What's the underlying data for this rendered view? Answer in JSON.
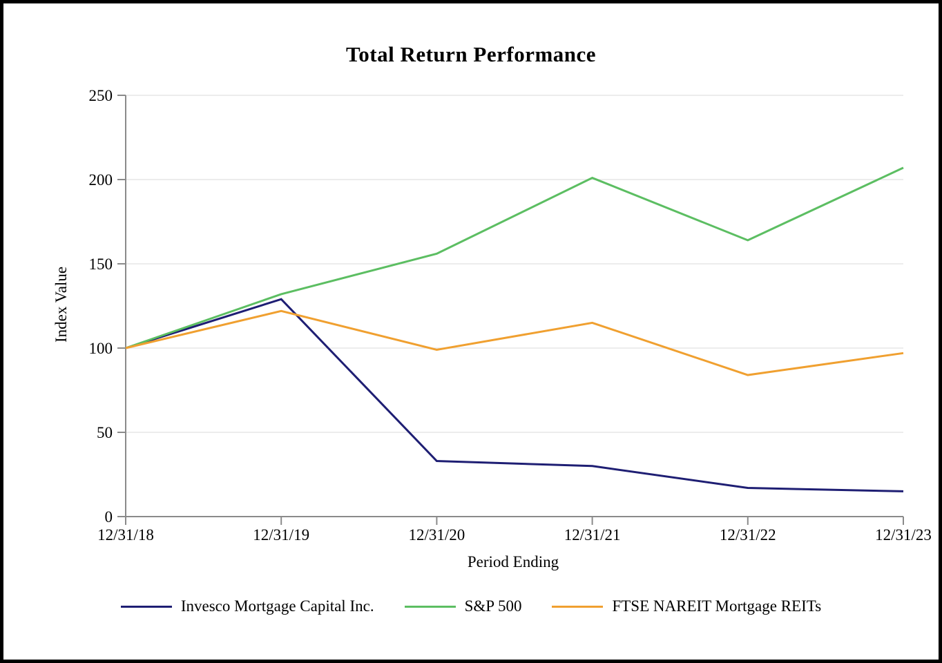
{
  "chart_data": {
    "type": "line",
    "title": "Total Return Performance",
    "xlabel": "Period Ending",
    "ylabel": "Index Value",
    "categories": [
      "12/31/18",
      "12/31/19",
      "12/31/20",
      "12/31/21",
      "12/31/22",
      "12/31/23"
    ],
    "yticks": [
      0,
      50,
      100,
      150,
      200,
      250
    ],
    "ylim": [
      0,
      250
    ],
    "grid": true,
    "legend_position": "bottom",
    "series": [
      {
        "name": "Invesco Mortgage Capital Inc.",
        "color": "#1e1e73",
        "values": [
          100,
          129,
          33,
          30,
          17,
          15
        ]
      },
      {
        "name": "S&P 500",
        "color": "#5cbe62",
        "values": [
          100,
          132,
          156,
          201,
          164,
          207
        ]
      },
      {
        "name": "FTSE NAREIT Mortgage REITs",
        "color": "#f0a030",
        "values": [
          100,
          122,
          99,
          115,
          84,
          97
        ]
      }
    ]
  }
}
